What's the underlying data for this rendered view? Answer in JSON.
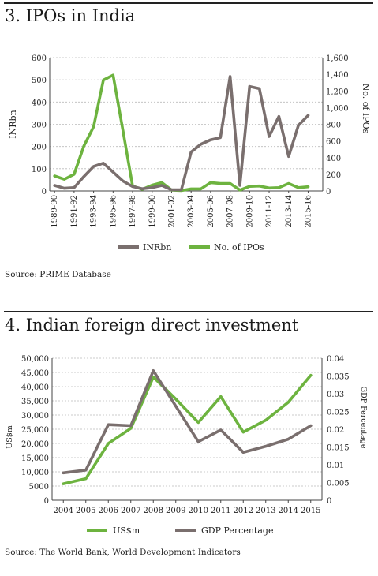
{
  "panels": [
    {
      "title": "3. IPOs in India",
      "source": "Source: PRIME Database"
    },
    {
      "title": "4. Indian foreign direct investment",
      "source": "Source: The World Bank, World Development Indicators"
    }
  ],
  "chart_data": [
    {
      "type": "line",
      "title": "3. IPOs in India",
      "xlabel": "",
      "ylabel": "INRbn",
      "y2label": "No. of IPOs",
      "ylim": [
        0,
        600
      ],
      "y2lim": [
        0,
        1600
      ],
      "yticks": [
        "0",
        "100",
        "200",
        "300",
        "400",
        "500",
        "600"
      ],
      "y2ticks": [
        "0",
        "200",
        "400",
        "600",
        "800",
        "1,000",
        "1,200",
        "1,400",
        "1,600"
      ],
      "categories": [
        "1989-90",
        "1990-91",
        "1991-92",
        "1992-93",
        "1993-94",
        "1994-95",
        "1995-96",
        "1996-97",
        "1997-98",
        "1998-99",
        "1999-00",
        "2000-01",
        "2001-02",
        "2002-03",
        "2003-04",
        "2004-05",
        "2005-06",
        "2006-07",
        "2007-08",
        "2008-09",
        "2009-10",
        "2010-11",
        "2011-12",
        "2012-13",
        "2013-14",
        "2014-15",
        "2015-16"
      ],
      "xtick_labels": [
        "1989-90",
        "1991-92",
        "1993-94",
        "1995-96",
        "1997-98",
        "1999-00",
        "2001-02",
        "2003-04",
        "2005-06",
        "2007-08",
        "2009-10",
        "2011-12",
        "2013-14",
        "2015-16"
      ],
      "xtick_every": 2,
      "x_slots": 28,
      "grid": true,
      "legend": "bottom",
      "series": [
        {
          "name": "INRbn",
          "axis": "left",
          "color": "#7a6f6e",
          "values": [
            25,
            12,
            15,
            65,
            110,
            125,
            85,
            45,
            20,
            10,
            15,
            25,
            5,
            5,
            175,
            210,
            230,
            240,
            515,
            25,
            470,
            460,
            245,
            335,
            155,
            295,
            340
          ]
        },
        {
          "name": "No. of IPOs",
          "axis": "right",
          "color": "#6db33f",
          "values": [
            180,
            140,
            200,
            540,
            770,
            1330,
            1390,
            730,
            60,
            20,
            70,
            100,
            10,
            5,
            25,
            25,
            100,
            90,
            90,
            10,
            55,
            60,
            35,
            40,
            90,
            40,
            50
          ]
        }
      ]
    },
    {
      "type": "line",
      "title": "4. Indian foreign direct investment",
      "xlabel": "",
      "ylabel": "US$m",
      "y2label": "GDP Percentage",
      "ylim": [
        0,
        50000
      ],
      "y2lim": [
        0,
        0.04
      ],
      "yticks": [
        "0",
        "5000",
        "10,000",
        "15,000",
        "20,000",
        "25,000",
        "30,000",
        "35,000",
        "40,000",
        "45,000",
        "50,000"
      ],
      "y2ticks": [
        "0",
        "0.005",
        "0.01",
        "0.015",
        "0.02",
        "0.025",
        "0.03",
        "0.035",
        "0.04"
      ],
      "categories": [
        "2004",
        "2005",
        "2006",
        "2007",
        "2008",
        "2009",
        "2010",
        "2011",
        "2012",
        "2013",
        "2014",
        "2015"
      ],
      "grid": true,
      "legend": "bottom",
      "series": [
        {
          "name": "US$m",
          "axis": "left",
          "color": "#6db33f",
          "values": [
            5800,
            7600,
            20000,
            25300,
            43400,
            35600,
            27400,
            36500,
            24000,
            28200,
            34500,
            44000
          ]
        },
        {
          "name": "GDP Percentage",
          "axis": "right",
          "color": "#7a6f6e",
          "values": [
            0.0077,
            0.0085,
            0.0213,
            0.021,
            0.0365,
            0.0265,
            0.0165,
            0.0198,
            0.0135,
            0.0152,
            0.0172,
            0.021
          ]
        }
      ]
    }
  ]
}
